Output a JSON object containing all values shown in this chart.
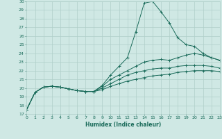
{
  "xlabel": "Humidex (Indice chaleur)",
  "xlim": [
    0,
    23
  ],
  "ylim": [
    17,
    30
  ],
  "yticks": [
    17,
    18,
    19,
    20,
    21,
    22,
    23,
    24,
    25,
    26,
    27,
    28,
    29,
    30
  ],
  "xticks": [
    0,
    1,
    2,
    3,
    4,
    5,
    6,
    7,
    8,
    9,
    10,
    11,
    12,
    13,
    14,
    15,
    16,
    17,
    18,
    19,
    20,
    21,
    22,
    23
  ],
  "bg_color": "#cfe8e4",
  "line_color": "#1a6b5a",
  "grid_color": "#b0cfc9",
  "lines": [
    {
      "x": [
        0,
        1,
        2,
        3,
        4,
        5,
        6,
        7,
        8,
        9,
        10,
        11,
        12,
        13,
        14,
        15,
        16,
        17,
        18,
        19,
        20,
        21,
        22,
        23
      ],
      "y": [
        17.5,
        19.5,
        20.1,
        20.2,
        20.1,
        19.9,
        19.7,
        19.6,
        19.6,
        20.3,
        21.5,
        22.5,
        23.5,
        26.5,
        29.8,
        30.0,
        28.8,
        27.5,
        25.8,
        25.0,
        24.8,
        24.0,
        23.5,
        23.2
      ]
    },
    {
      "x": [
        0,
        1,
        2,
        3,
        4,
        5,
        6,
        7,
        8,
        9,
        10,
        11,
        12,
        13,
        14,
        15,
        16,
        17,
        18,
        19,
        20,
        21,
        22,
        23
      ],
      "y": [
        17.5,
        19.5,
        20.1,
        20.2,
        20.1,
        19.9,
        19.7,
        19.6,
        19.6,
        20.2,
        21.0,
        21.5,
        22.0,
        22.5,
        23.0,
        23.2,
        23.3,
        23.2,
        23.5,
        23.8,
        24.0,
        23.8,
        23.5,
        23.2
      ]
    },
    {
      "x": [
        0,
        1,
        2,
        3,
        4,
        5,
        6,
        7,
        8,
        9,
        10,
        11,
        12,
        13,
        14,
        15,
        16,
        17,
        18,
        19,
        20,
        21,
        22,
        23
      ],
      "y": [
        17.5,
        19.5,
        20.1,
        20.2,
        20.1,
        19.9,
        19.7,
        19.6,
        19.6,
        20.0,
        20.5,
        21.0,
        21.5,
        21.8,
        22.0,
        22.2,
        22.3,
        22.3,
        22.5,
        22.6,
        22.6,
        22.6,
        22.5,
        22.3
      ]
    },
    {
      "x": [
        0,
        1,
        2,
        3,
        4,
        5,
        6,
        7,
        8,
        9,
        10,
        11,
        12,
        13,
        14,
        15,
        16,
        17,
        18,
        19,
        20,
        21,
        22,
        23
      ],
      "y": [
        17.5,
        19.5,
        20.1,
        20.2,
        20.1,
        19.9,
        19.7,
        19.6,
        19.6,
        19.8,
        20.2,
        20.5,
        20.8,
        21.0,
        21.2,
        21.4,
        21.5,
        21.6,
        21.8,
        21.9,
        22.0,
        22.0,
        22.0,
        21.9
      ]
    }
  ]
}
